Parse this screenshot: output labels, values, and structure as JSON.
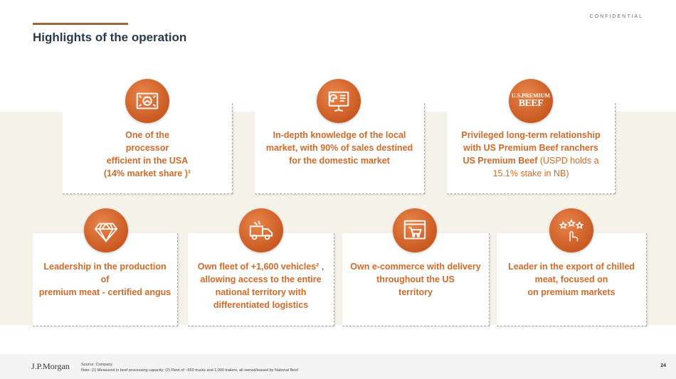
{
  "header": {
    "confidential": "CONFIDENTIAL",
    "title": "Highlights of the operation"
  },
  "cards": {
    "c1": {
      "line1": "One of the",
      "line2": "processor",
      "line3": "efficient in the USA",
      "line4": "(14% market share )¹",
      "icon": "money-icon"
    },
    "c2": {
      "line1": "In-depth knowledge of the local",
      "line2": "market, with 90% of sales destined",
      "line3": "for the domestic market",
      "icon": "presentation-chart-icon"
    },
    "c3": {
      "line1": "Privileged long-term relationship",
      "line2": "with US Premium Beef ranchers",
      "line3_bold": "US Premium Beef",
      "line3_normal": " (USPD holds a",
      "line4": "15.1% stake in NB)",
      "icon": "us-premium-beef-logo",
      "logo_top": "U.S.PREMIUM",
      "logo_bottom": "BEEF"
    },
    "c4": {
      "line1": "Leadership in the production",
      "line2": "of",
      "line3": "premium meat - certified angus",
      "icon": "diamond-icon"
    },
    "c5": {
      "line1": "Own fleet of +1,600 vehicles² ,",
      "line2": "allowing access to the entire",
      "line3": "national territory with",
      "line4": "differentiated logistics",
      "icon": "truck-icon"
    },
    "c6": {
      "line1": "Own e-commerce with delivery",
      "line2": "throughout the US",
      "line3": "territory",
      "icon": "shopping-cart-icon"
    },
    "c7": {
      "line1": "Leader in the export of chilled",
      "line2": "meat, focused on",
      "line3": "on premium markets",
      "icon": "stars-hand-icon"
    }
  },
  "footer": {
    "logo": "J.P.Morgan",
    "source": "Source: Company",
    "note": "Note: (1) Measured in beef processing capacity; (2) Fleet of ~650 trucks and 1,000 trailers, all owned/leased by National Beef",
    "page": "24"
  },
  "colors": {
    "accent": "#d06a2a",
    "title": "#2b3a4a",
    "band": "#f5f2ea",
    "rule": "#9a6a3e"
  }
}
